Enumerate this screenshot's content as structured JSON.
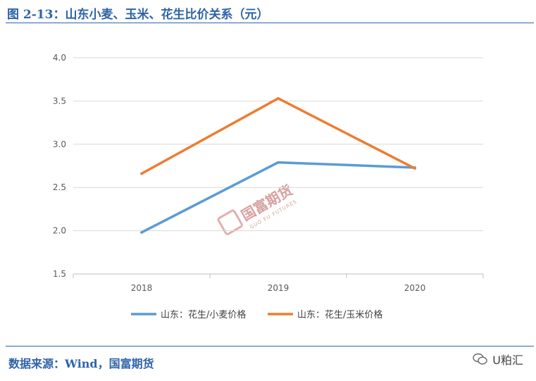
{
  "figure": {
    "title": "图 2-13：山东小麦、玉米、花生比价关系（元）",
    "source": "数据来源：Wind，国富期货",
    "brand": "U粕汇",
    "watermark_cn": "国富期货",
    "watermark_en": "GUO FU FUTURES"
  },
  "colors": {
    "accent": "#2e63a8",
    "series_wheat": "#5b9bd5",
    "series_corn": "#ed7d31",
    "grid": "#d9d9d9"
  },
  "chart_data": {
    "type": "line",
    "title": "",
    "xlabel": "",
    "ylabel": "",
    "categories": [
      "2018",
      "2019",
      "2020"
    ],
    "ylim": [
      1.5,
      4.0
    ],
    "yticks": [
      "1.5",
      "2.0",
      "2.5",
      "3.0",
      "3.5",
      "4.0"
    ],
    "grid": true,
    "legend_position": "bottom",
    "series": [
      {
        "name": "山东：花生/小麦价格",
        "values": [
          1.98,
          2.79,
          2.73
        ],
        "color": "#5b9bd5"
      },
      {
        "name": "山东：花生/玉米价格",
        "values": [
          2.66,
          3.53,
          2.72
        ],
        "color": "#ed7d31"
      }
    ]
  }
}
